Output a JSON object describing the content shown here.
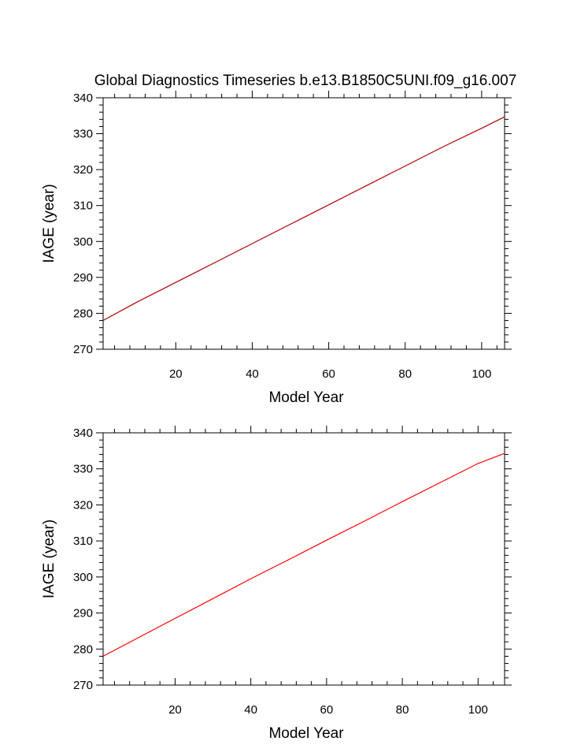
{
  "title": "Global Diagnostics Timeseries b.e13.B1850C5UNI.f09_g16.007",
  "chart_data": [
    {
      "type": "line",
      "title": "Global Diagnostics Timeseries b.e13.B1850C5UNI.f09_g16.007",
      "xlabel": "Model Year",
      "ylabel": "IAGE (year)",
      "xlim": [
        1,
        106
      ],
      "ylim": [
        270,
        340
      ],
      "xticks": [
        20,
        40,
        60,
        80,
        100
      ],
      "yticks": [
        270,
        280,
        290,
        300,
        310,
        320,
        330,
        340
      ],
      "grid": false,
      "series": [
        {
          "color": "#b00000",
          "x": [
            1,
            10,
            20,
            30,
            40,
            50,
            60,
            70,
            80,
            90,
            100,
            106
          ],
          "values": [
            278.0,
            283.2,
            288.6,
            294.0,
            299.4,
            304.8,
            310.2,
            315.6,
            321.0,
            326.4,
            331.5,
            334.7
          ]
        }
      ]
    },
    {
      "type": "line",
      "title": "",
      "xlabel": "Model Year",
      "ylabel": "IAGE (year)",
      "xlim": [
        1,
        107
      ],
      "ylim": [
        270,
        340
      ],
      "xticks": [
        20,
        40,
        60,
        80,
        100
      ],
      "yticks": [
        270,
        280,
        290,
        300,
        310,
        320,
        330,
        340
      ],
      "grid": false,
      "series": [
        {
          "color": "#ff0000",
          "x": [
            1,
            10,
            20,
            30,
            40,
            50,
            60,
            70,
            80,
            90,
            100,
            107
          ],
          "values": [
            278.0,
            283.0,
            288.5,
            294.0,
            299.5,
            304.8,
            310.2,
            315.5,
            320.9,
            326.2,
            331.5,
            334.3
          ]
        }
      ]
    }
  ]
}
